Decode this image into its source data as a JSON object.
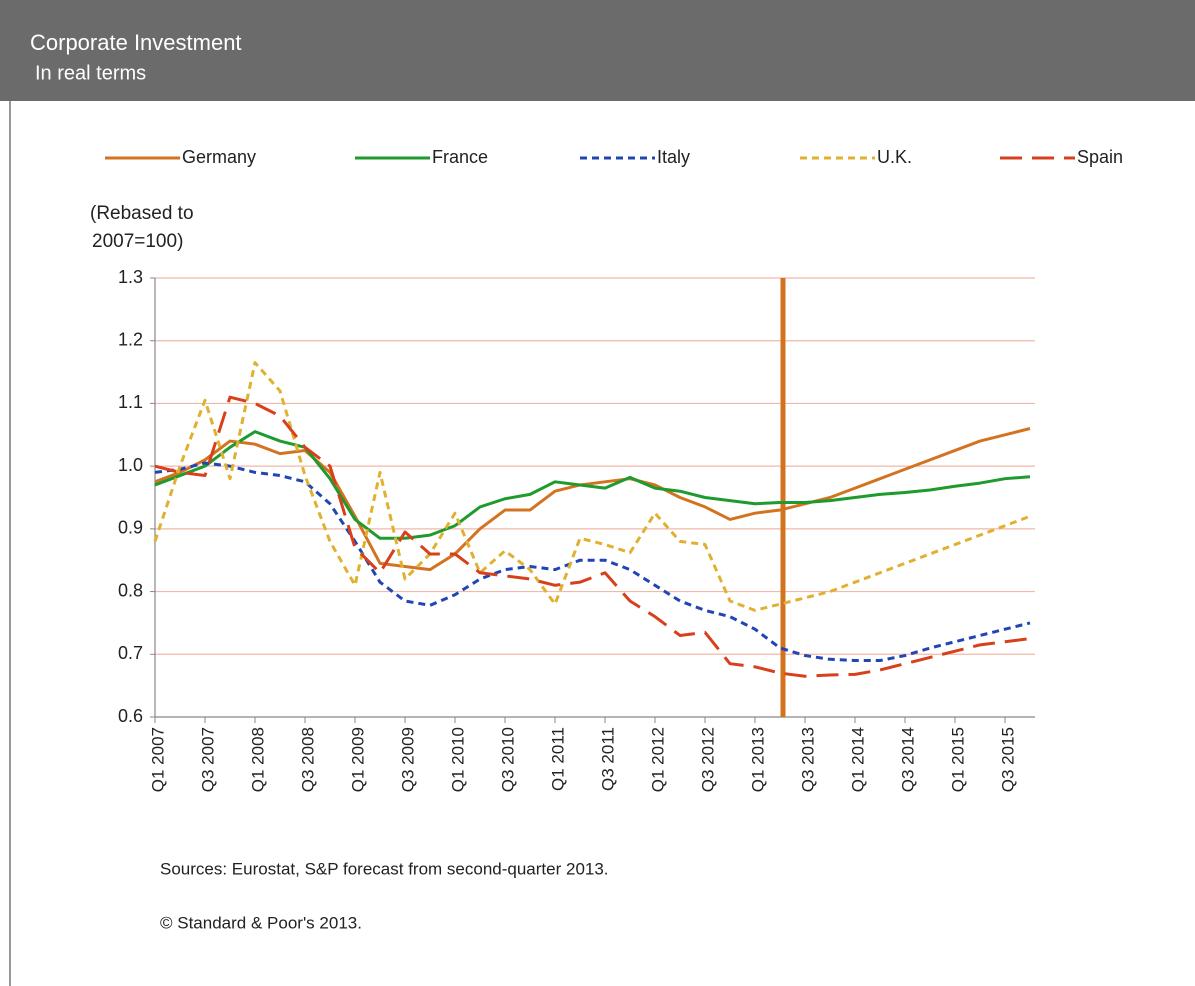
{
  "chart_data": {
    "type": "line",
    "title": "Corporate Investment",
    "subtitle": "In real terms",
    "ylabel": [
      "(Rebased to",
      "2007=100)"
    ],
    "notes": [
      "Sources: Eurostat, S&P  forecast from second-quarter 2013.",
      "© Standard & Poor's 2013."
    ],
    "categories": [
      "Q1 2007",
      null,
      "Q3 2007",
      null,
      "Q1 2008",
      null,
      "Q3 2008",
      null,
      "Q1 2009",
      null,
      "Q3 2009",
      null,
      "Q1 2010",
      null,
      "Q3 2010",
      null,
      "Q1 2011",
      null,
      "Q3 2011",
      null,
      "Q1 2012",
      null,
      "Q3 2012",
      null,
      "Q1 2013",
      null,
      "Q3 2013",
      null,
      "Q1 2014",
      null,
      "Q3 2014",
      null,
      "Q1 2015",
      null,
      "Q3 2015",
      null
    ],
    "ylim": [
      0.6,
      1.3
    ],
    "yticks": [
      0.6,
      0.7,
      0.8,
      0.9,
      {
        "value": 1,
        "label": "1.0"
      },
      1.1,
      1.2,
      1.3
    ],
    "grid": true,
    "legend": "top",
    "series": [
      {
        "name": "Germany",
        "color": "#d4731f",
        "style": "solid",
        "values": [
          0.975,
          0.99,
          1.01,
          1.04,
          1.035,
          1.02,
          1.025,
          0.99,
          0.92,
          0.845,
          0.84,
          0.835,
          0.86,
          0.9,
          0.93,
          0.93,
          0.96,
          0.97,
          0.975,
          0.98,
          0.97,
          0.95,
          0.935,
          0.915,
          0.925,
          0.93,
          0.94,
          0.95,
          0.965,
          0.98,
          0.995,
          1.01,
          1.025,
          1.04,
          1.05,
          1.06
        ]
      },
      {
        "name": "France",
        "color": "#1f9a2e",
        "style": "solid",
        "values": [
          0.97,
          0.985,
          1.0,
          1.03,
          1.055,
          1.04,
          1.03,
          0.98,
          0.915,
          0.885,
          0.885,
          0.89,
          0.905,
          0.935,
          0.948,
          0.955,
          0.975,
          0.97,
          0.965,
          0.982,
          0.965,
          0.96,
          0.95,
          0.945,
          0.94,
          0.942,
          0.942,
          0.945,
          0.95,
          0.955,
          0.958,
          0.962,
          0.968,
          0.973,
          0.98,
          0.983
        ]
      },
      {
        "name": "Italy",
        "color": "#2145b5",
        "style": "dashed",
        "values": [
          0.99,
          0.995,
          1.005,
          1.0,
          0.99,
          0.985,
          0.975,
          0.94,
          0.88,
          0.815,
          0.785,
          0.778,
          0.795,
          0.82,
          0.835,
          0.84,
          0.835,
          0.85,
          0.85,
          0.835,
          0.81,
          0.785,
          0.77,
          0.76,
          0.74,
          0.71,
          0.698,
          0.692,
          0.69,
          0.69,
          0.698,
          0.71,
          0.72,
          0.73,
          0.74,
          0.75
        ]
      },
      {
        "name": "U.K.",
        "color": "#e0b030",
        "style": "dashed",
        "values": [
          0.88,
          1.0,
          1.105,
          0.98,
          1.165,
          1.12,
          0.985,
          0.88,
          0.81,
          0.99,
          0.82,
          0.86,
          0.925,
          0.83,
          0.865,
          0.835,
          0.78,
          0.885,
          0.875,
          0.862,
          0.925,
          0.88,
          0.875,
          0.785,
          0.77,
          0.78,
          0.79,
          0.8,
          0.815,
          0.83,
          0.845,
          0.86,
          0.875,
          0.89,
          0.905,
          0.92
        ]
      },
      {
        "name": "Spain",
        "color": "#d8401c",
        "style": "longdash",
        "values": [
          1.0,
          0.99,
          0.985,
          1.11,
          1.1,
          1.08,
          1.03,
          1.0,
          0.87,
          0.83,
          0.895,
          0.86,
          0.86,
          0.83,
          0.825,
          0.82,
          0.81,
          0.815,
          0.83,
          0.785,
          0.76,
          0.73,
          0.735,
          0.685,
          0.68,
          0.67,
          0.665,
          0.667,
          0.668,
          0.675,
          0.685,
          0.695,
          0.705,
          0.715,
          0.72,
          0.725
        ]
      }
    ]
  }
}
